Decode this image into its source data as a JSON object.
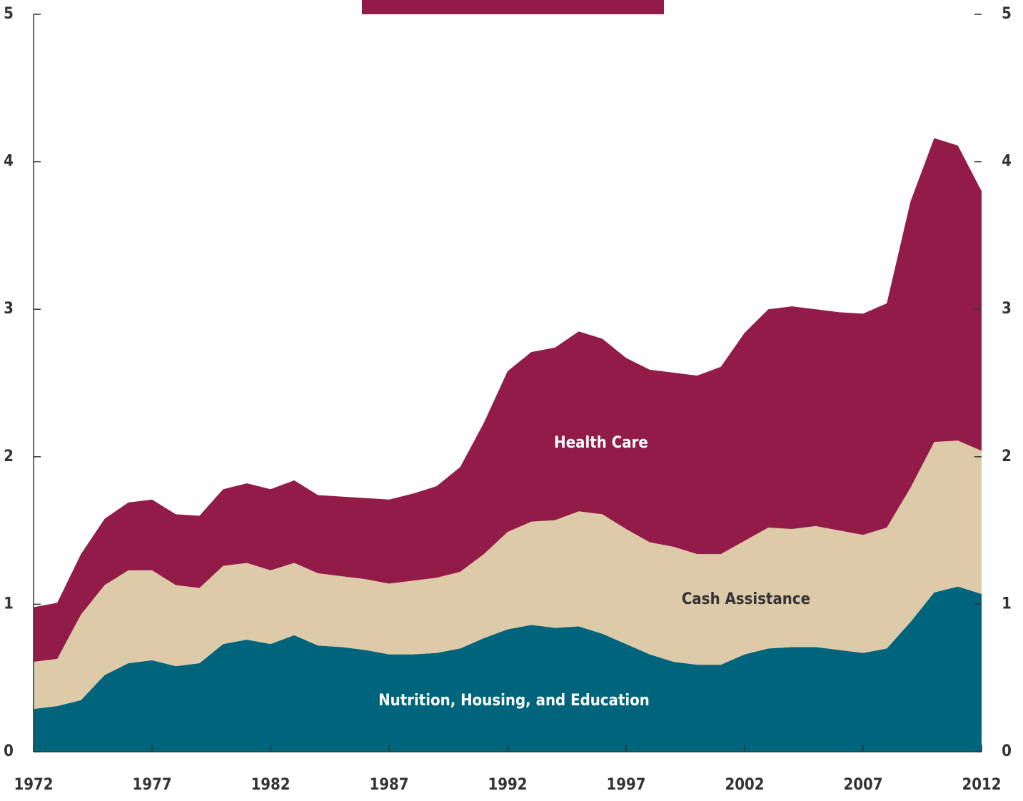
{
  "chart_data": {
    "type": "stacked_area",
    "x": [
      1972,
      1973,
      1974,
      1975,
      1976,
      1977,
      1978,
      1979,
      1980,
      1981,
      1982,
      1983,
      1984,
      1985,
      1986,
      1987,
      1988,
      1989,
      1990,
      1991,
      1992,
      1993,
      1994,
      1995,
      1996,
      1997,
      1998,
      1999,
      2000,
      2001,
      2002,
      2003,
      2004,
      2005,
      2006,
      2007,
      2008,
      2009,
      2010,
      2011,
      2012
    ],
    "series": [
      {
        "name": "Nutrition, Housing, and Education",
        "color": "#00657c",
        "values": [
          0.29,
          0.31,
          0.35,
          0.52,
          0.6,
          0.62,
          0.58,
          0.6,
          0.73,
          0.76,
          0.73,
          0.79,
          0.72,
          0.71,
          0.69,
          0.66,
          0.66,
          0.67,
          0.7,
          0.77,
          0.83,
          0.86,
          0.84,
          0.85,
          0.8,
          0.73,
          0.66,
          0.61,
          0.59,
          0.59,
          0.66,
          0.7,
          0.71,
          0.71,
          0.69,
          0.67,
          0.7,
          0.88,
          1.08,
          1.12,
          1.07
        ]
      },
      {
        "name": "Cash Assistance",
        "color": "#dccaa8",
        "values": [
          0.32,
          0.32,
          0.58,
          0.61,
          0.63,
          0.61,
          0.55,
          0.51,
          0.53,
          0.52,
          0.5,
          0.49,
          0.49,
          0.48,
          0.48,
          0.48,
          0.5,
          0.51,
          0.52,
          0.57,
          0.66,
          0.7,
          0.73,
          0.78,
          0.81,
          0.78,
          0.76,
          0.78,
          0.75,
          0.75,
          0.77,
          0.82,
          0.8,
          0.82,
          0.81,
          0.8,
          0.82,
          0.91,
          1.02,
          0.99,
          0.97
        ]
      },
      {
        "name": "Health Care",
        "color": "#931b47",
        "values": [
          0.37,
          0.38,
          0.41,
          0.45,
          0.46,
          0.48,
          0.48,
          0.49,
          0.52,
          0.54,
          0.55,
          0.56,
          0.53,
          0.54,
          0.55,
          0.57,
          0.59,
          0.62,
          0.71,
          0.89,
          1.09,
          1.15,
          1.17,
          1.22,
          1.19,
          1.16,
          1.17,
          1.18,
          1.21,
          1.27,
          1.41,
          1.48,
          1.51,
          1.47,
          1.48,
          1.5,
          1.52,
          1.94,
          2.06,
          2.0,
          1.76
        ]
      }
    ],
    "xlim": [
      1972,
      2012
    ],
    "xticks": [
      1972,
      1977,
      1982,
      1987,
      1992,
      1997,
      2002,
      2007,
      2012
    ],
    "ylim": [
      0,
      5
    ],
    "yticks": [
      0,
      1,
      2,
      3,
      4,
      5
    ],
    "y2lim": [
      0,
      5
    ],
    "y2ticks": [
      0,
      1,
      2,
      3,
      4,
      5
    ]
  }
}
